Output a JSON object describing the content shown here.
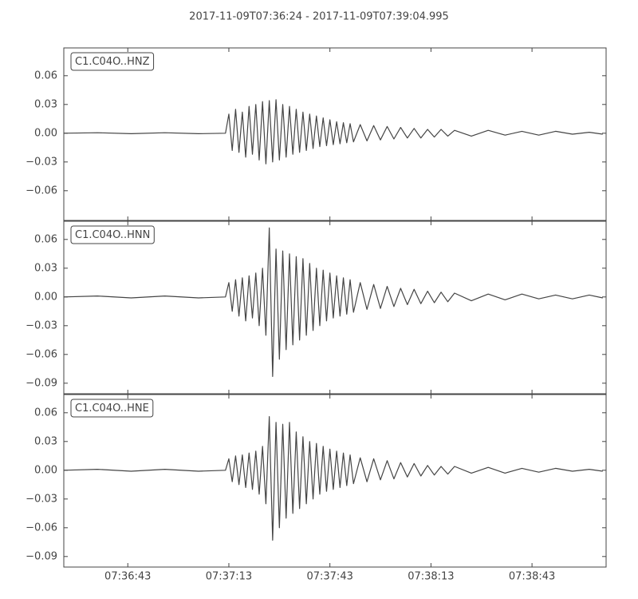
{
  "chart_data": [
    {
      "type": "line",
      "title": "2017-11-09T07:36:24  -  2017-11-09T07:39:04.995",
      "xlim": [
        "07:36:24",
        "07:39:04.995"
      ],
      "x": [
        "07:36:24",
        "07:36:34",
        "07:36:44",
        "07:36:54",
        "07:37:04",
        "07:37:12",
        "07:37:13",
        "07:37:14",
        "07:37:15",
        "07:37:16",
        "07:37:17",
        "07:37:18",
        "07:37:19",
        "07:37:20",
        "07:37:21",
        "07:37:22",
        "07:37:23",
        "07:37:24",
        "07:37:25",
        "07:37:26",
        "07:37:27",
        "07:37:28",
        "07:37:29",
        "07:37:30",
        "07:37:31",
        "07:37:32",
        "07:37:33",
        "07:37:34",
        "07:37:35",
        "07:37:36",
        "07:37:37",
        "07:37:38",
        "07:37:39",
        "07:37:40",
        "07:37:41",
        "07:37:42",
        "07:37:43",
        "07:37:44",
        "07:37:45",
        "07:37:46",
        "07:37:47",
        "07:37:48",
        "07:37:49",
        "07:37:50",
        "07:37:52",
        "07:37:54",
        "07:37:56",
        "07:37:58",
        "07:38:00",
        "07:38:02",
        "07:38:04",
        "07:38:06",
        "07:38:08",
        "07:38:10",
        "07:38:12",
        "07:38:14",
        "07:38:16",
        "07:38:18",
        "07:38:20",
        "07:38:25",
        "07:38:30",
        "07:38:35",
        "07:38:40",
        "07:38:45",
        "07:38:50",
        "07:38:55",
        "07:39:00",
        "07:39:04"
      ],
      "series": [
        {
          "name": "C1.C04O..HNZ",
          "color": "#444444",
          "values": [
            0,
            0.0005,
            -0.0005,
            0.0005,
            -0.0005,
            0,
            0.02,
            -0.018,
            0.025,
            -0.02,
            0.022,
            -0.025,
            0.028,
            -0.022,
            0.03,
            -0.028,
            0.033,
            -0.032,
            0.034,
            -0.03,
            0.035,
            -0.028,
            0.03,
            -0.025,
            0.028,
            -0.022,
            0.025,
            -0.02,
            0.022,
            -0.018,
            0.02,
            -0.016,
            0.018,
            -0.014,
            0.016,
            -0.013,
            0.014,
            -0.012,
            0.012,
            -0.011,
            0.011,
            -0.01,
            0.01,
            -0.009,
            0.009,
            -0.008,
            0.008,
            -0.007,
            0.007,
            -0.006,
            0.006,
            -0.005,
            0.005,
            -0.005,
            0.004,
            -0.004,
            0.004,
            -0.003,
            0.003,
            -0.003,
            0.003,
            -0.002,
            0.002,
            -0.002,
            0.002,
            -0.001,
            0.001,
            -0.001
          ]
        }
      ],
      "ylim": [
        -0.091,
        0.089
      ],
      "yticks": [
        {
          "value": -0.06,
          "label": "−0.06"
        },
        {
          "value": -0.03,
          "label": "−0.03"
        },
        {
          "value": 0,
          "label": "0.00"
        },
        0.03,
        0.06
      ]
    },
    {
      "type": "line",
      "xlim": [
        "07:36:24",
        "07:39:04.995"
      ],
      "x": [
        "07:36:24",
        "07:36:34",
        "07:36:44",
        "07:36:54",
        "07:37:04",
        "07:37:12",
        "07:37:13",
        "07:37:14",
        "07:37:15",
        "07:37:16",
        "07:37:17",
        "07:37:18",
        "07:37:19",
        "07:37:20",
        "07:37:21",
        "07:37:22",
        "07:37:23",
        "07:37:24",
        "07:37:25",
        "07:37:26",
        "07:37:27",
        "07:37:28",
        "07:37:29",
        "07:37:30",
        "07:37:31",
        "07:37:32",
        "07:37:33",
        "07:37:34",
        "07:37:35",
        "07:37:36",
        "07:37:37",
        "07:37:38",
        "07:37:39",
        "07:37:40",
        "07:37:41",
        "07:37:42",
        "07:37:43",
        "07:37:44",
        "07:37:45",
        "07:37:46",
        "07:37:47",
        "07:37:48",
        "07:37:49",
        "07:37:50",
        "07:37:52",
        "07:37:54",
        "07:37:56",
        "07:37:58",
        "07:38:00",
        "07:38:02",
        "07:38:04",
        "07:38:06",
        "07:38:08",
        "07:38:10",
        "07:38:12",
        "07:38:14",
        "07:38:16",
        "07:38:18",
        "07:38:20",
        "07:38:25",
        "07:38:30",
        "07:38:35",
        "07:38:40",
        "07:38:45",
        "07:38:50",
        "07:38:55",
        "07:39:00",
        "07:39:04"
      ],
      "series": [
        {
          "name": "C1.C04O..HNN",
          "color": "#444444",
          "values": [
            0,
            0.001,
            -0.001,
            0.001,
            -0.001,
            0,
            0.015,
            -0.015,
            0.018,
            -0.02,
            0.02,
            -0.025,
            0.022,
            -0.022,
            0.025,
            -0.03,
            0.03,
            -0.04,
            0.072,
            -0.083,
            0.05,
            -0.065,
            0.048,
            -0.055,
            0.045,
            -0.05,
            0.042,
            -0.045,
            0.04,
            -0.04,
            0.035,
            -0.035,
            0.03,
            -0.03,
            0.028,
            -0.025,
            0.025,
            -0.022,
            0.022,
            -0.02,
            0.02,
            -0.018,
            0.018,
            -0.016,
            0.015,
            -0.013,
            0.013,
            -0.012,
            0.011,
            -0.01,
            0.009,
            -0.008,
            0.008,
            -0.007,
            0.006,
            -0.006,
            0.005,
            -0.005,
            0.004,
            -0.004,
            0.003,
            -0.003,
            0.003,
            -0.002,
            0.002,
            -0.002,
            0.002,
            -0.001
          ]
        }
      ],
      "ylim": [
        -0.101,
        0.079
      ],
      "yticks": [
        {
          "value": -0.09,
          "label": "−0.09"
        },
        {
          "value": -0.06,
          "label": "−0.06"
        },
        {
          "value": -0.03,
          "label": "−0.03"
        },
        {
          "value": 0,
          "label": "0.00"
        },
        0.03,
        0.06
      ]
    },
    {
      "type": "line",
      "xlim": [
        "07:36:24",
        "07:39:04.995"
      ],
      "x": [
        "07:36:24",
        "07:36:34",
        "07:36:44",
        "07:36:54",
        "07:37:04",
        "07:37:12",
        "07:37:13",
        "07:37:14",
        "07:37:15",
        "07:37:16",
        "07:37:17",
        "07:37:18",
        "07:37:19",
        "07:37:20",
        "07:37:21",
        "07:37:22",
        "07:37:23",
        "07:37:24",
        "07:37:25",
        "07:37:26",
        "07:37:27",
        "07:37:28",
        "07:37:29",
        "07:37:30",
        "07:37:31",
        "07:37:32",
        "07:37:33",
        "07:37:34",
        "07:37:35",
        "07:37:36",
        "07:37:37",
        "07:37:38",
        "07:37:39",
        "07:37:40",
        "07:37:41",
        "07:37:42",
        "07:37:43",
        "07:37:44",
        "07:37:45",
        "07:37:46",
        "07:37:47",
        "07:37:48",
        "07:37:49",
        "07:37:50",
        "07:37:52",
        "07:37:54",
        "07:37:56",
        "07:37:58",
        "07:38:00",
        "07:38:02",
        "07:38:04",
        "07:38:06",
        "07:38:08",
        "07:38:10",
        "07:38:12",
        "07:38:14",
        "07:38:16",
        "07:38:18",
        "07:38:20",
        "07:38:25",
        "07:38:30",
        "07:38:35",
        "07:38:40",
        "07:38:45",
        "07:38:50",
        "07:38:55",
        "07:39:00",
        "07:39:04"
      ],
      "series": [
        {
          "name": "C1.C04O..HNE",
          "color": "#444444",
          "values": [
            0,
            0.001,
            -0.001,
            0.001,
            -0.001,
            0,
            0.012,
            -0.012,
            0.015,
            -0.015,
            0.016,
            -0.018,
            0.018,
            -0.02,
            0.02,
            -0.025,
            0.025,
            -0.035,
            0.056,
            -0.073,
            0.05,
            -0.06,
            0.048,
            -0.05,
            0.05,
            -0.045,
            0.04,
            -0.04,
            0.035,
            -0.035,
            0.03,
            -0.03,
            0.028,
            -0.025,
            0.025,
            -0.022,
            0.022,
            -0.02,
            0.02,
            -0.018,
            0.018,
            -0.016,
            0.016,
            -0.014,
            0.013,
            -0.012,
            0.012,
            -0.01,
            0.01,
            -0.009,
            0.008,
            -0.007,
            0.007,
            -0.006,
            0.005,
            -0.005,
            0.004,
            -0.004,
            0.004,
            -0.003,
            0.003,
            -0.003,
            0.002,
            -0.002,
            0.002,
            -0.001,
            0.001,
            -0.001
          ]
        }
      ],
      "ylim": [
        -0.101,
        0.079
      ],
      "yticks": [
        {
          "value": -0.09,
          "label": "−0.09"
        },
        {
          "value": -0.06,
          "label": "−0.06"
        },
        {
          "value": -0.03,
          "label": "−0.03"
        },
        {
          "value": 0,
          "label": "0.00"
        },
        0.03,
        0.06
      ],
      "xticks": [
        "07:36:43",
        "07:37:13",
        "07:37:43",
        "07:38:13",
        "07:38:43"
      ]
    }
  ]
}
